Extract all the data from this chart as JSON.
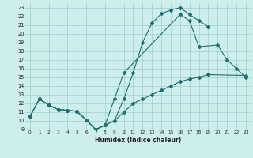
{
  "xlabel": "Humidex (Indice chaleur)",
  "xlim": [
    -0.5,
    23.5
  ],
  "ylim": [
    9,
    23.5
  ],
  "yticks": [
    9,
    10,
    11,
    12,
    13,
    14,
    15,
    16,
    17,
    18,
    19,
    20,
    21,
    22,
    23
  ],
  "xticks": [
    0,
    1,
    2,
    3,
    4,
    5,
    6,
    7,
    8,
    9,
    10,
    11,
    12,
    13,
    14,
    15,
    16,
    17,
    18,
    19,
    20,
    21,
    22,
    23
  ],
  "bg_color": "#cdeeed",
  "grid_color": "#9ecece",
  "line_color": "#1e7070",
  "line1_x": [
    0,
    1,
    2,
    3,
    4,
    5,
    6,
    7,
    8,
    9,
    10,
    11,
    12,
    13,
    14,
    15,
    16,
    17,
    18,
    19
  ],
  "line1_y": [
    10.5,
    12.5,
    11.8,
    11.3,
    11.2,
    11.1,
    10.1,
    9.0,
    9.5,
    10.0,
    12.5,
    15.5,
    19.0,
    21.2,
    22.3,
    22.7,
    23.0,
    22.2,
    21.5,
    20.8
  ],
  "line2_x": [
    0,
    1,
    2,
    3,
    4,
    5,
    6,
    7,
    8,
    9,
    10,
    16,
    17,
    18,
    20,
    21,
    22,
    23
  ],
  "line2_y": [
    10.5,
    12.5,
    11.8,
    11.3,
    11.2,
    11.1,
    10.1,
    9.0,
    9.5,
    12.5,
    15.5,
    22.2,
    21.5,
    18.5,
    18.7,
    17.0,
    16.0,
    15.0
  ],
  "line2_seg1_end": 10,
  "line2_seg2_start": 11,
  "line3_x": [
    0,
    1,
    2,
    3,
    4,
    5,
    6,
    7,
    8,
    9,
    10,
    11,
    12,
    13,
    14,
    15,
    16,
    17,
    18,
    19,
    23
  ],
  "line3_y": [
    10.5,
    12.5,
    11.8,
    11.3,
    11.2,
    11.1,
    10.1,
    9.0,
    9.5,
    10.0,
    11.0,
    12.0,
    12.5,
    13.0,
    13.5,
    14.0,
    14.5,
    14.8,
    15.0,
    15.3,
    15.2
  ]
}
